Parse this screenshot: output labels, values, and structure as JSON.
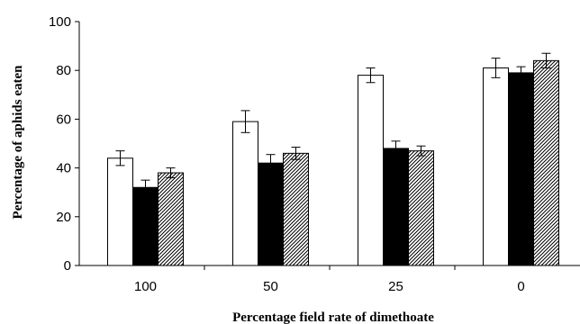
{
  "chart_data": {
    "type": "bar",
    "title": "",
    "xlabel": "Percentage field rate of dimethoate",
    "ylabel": "Percentage of aphids eaten",
    "categories": [
      "100",
      "50",
      "25",
      "0"
    ],
    "ylim": [
      0,
      100
    ],
    "yticks": [
      0,
      20,
      40,
      60,
      80,
      100
    ],
    "grid": false,
    "legend": "none",
    "series": [
      {
        "fill": "white",
        "color": "#ffffff",
        "values": [
          44,
          59,
          78,
          81
        ],
        "errors": [
          3,
          4.5,
          3,
          4
        ]
      },
      {
        "fill": "black",
        "color": "#000000",
        "values": [
          32,
          42,
          48,
          79
        ],
        "errors": [
          3,
          3.5,
          3,
          2.5
        ]
      },
      {
        "fill": "hatched",
        "color": "#ffffff",
        "values": [
          38,
          46,
          47,
          84
        ],
        "errors": [
          2,
          2.5,
          2,
          3
        ]
      }
    ]
  }
}
